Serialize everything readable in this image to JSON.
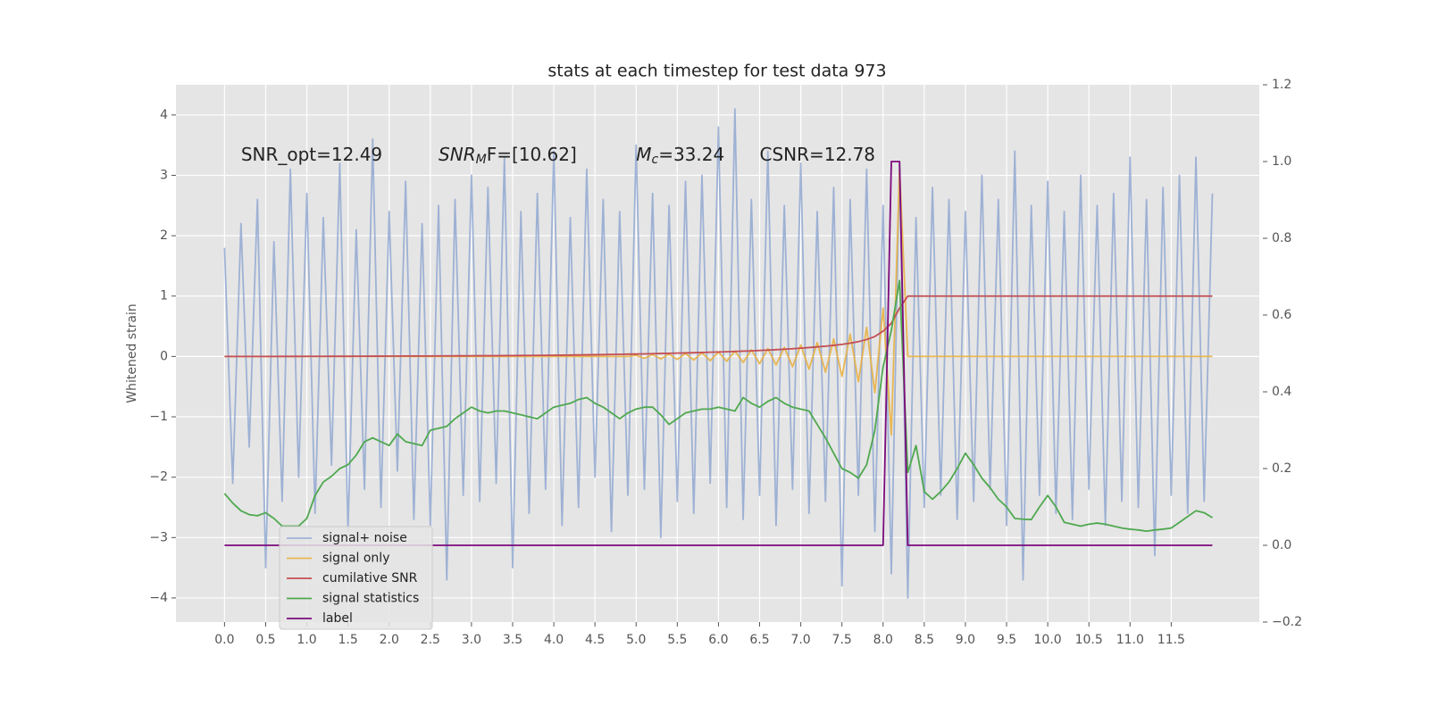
{
  "chart_data": {
    "type": "line",
    "title": "stats at each timestep for test data 973",
    "y_label": "Whitened strain",
    "annotations": [
      {
        "text": "SNR_opt=12.49",
        "x": 0.2
      },
      {
        "base": "SNR",
        "sub": "M",
        "tail": "F=[10.62]",
        "x": 2.6
      },
      {
        "base": "M",
        "sub": "c",
        "tail": "=33.24",
        "x": 5.0
      },
      {
        "text": "CSNR=12.78",
        "x": 6.5
      }
    ],
    "grid": true,
    "legend": "lower left",
    "xlim": [
      -0.59,
      12.57
    ],
    "ylim": [
      -4.4,
      4.5
    ],
    "y2lim": [
      -0.2,
      1.2
    ],
    "xticks": [
      {
        "value": 0,
        "label": "0.0"
      },
      0.5,
      {
        "value": 1,
        "label": "1.0"
      },
      1.5,
      {
        "value": 2,
        "label": "2.0"
      },
      2.5,
      {
        "value": 3,
        "label": "3.0"
      },
      3.5,
      {
        "value": 4,
        "label": "4.0"
      },
      4.5,
      {
        "value": 5,
        "label": "5.0"
      },
      5.5,
      {
        "value": 6,
        "label": "6.0"
      },
      6.5,
      {
        "value": 7,
        "label": "7.0"
      },
      7.5,
      {
        "value": 8,
        "label": "8.0"
      },
      8.5,
      {
        "value": 9,
        "label": "9.0"
      },
      9.5,
      {
        "value": 10,
        "label": "10.0"
      },
      10.5,
      {
        "value": 11,
        "label": "11.0"
      },
      11.5
    ],
    "yticks": [
      {
        "value": -4,
        "label": "−4"
      },
      {
        "value": -3,
        "label": "−3"
      },
      {
        "value": -2,
        "label": "−2"
      },
      {
        "value": -1,
        "label": "−1"
      },
      0,
      1,
      2,
      3,
      4
    ],
    "y2ticks": [
      {
        "value": -0.2,
        "label": "−0.2"
      },
      {
        "value": 0,
        "label": "0.0"
      },
      0.2,
      0.4,
      0.6,
      0.8,
      {
        "value": 1,
        "label": "1.0"
      },
      1.2
    ],
    "x": [
      0,
      0.1,
      0.2,
      0.3,
      0.4,
      0.5,
      0.6,
      0.7,
      0.8,
      0.9,
      1,
      1.1,
      1.2,
      1.3,
      1.4,
      1.5,
      1.6,
      1.7,
      1.8,
      1.9,
      2,
      2.1,
      2.2,
      2.3,
      2.4,
      2.5,
      2.6,
      2.7,
      2.8,
      2.9,
      3,
      3.1,
      3.2,
      3.3,
      3.4,
      3.5,
      3.6,
      3.7,
      3.8,
      3.9,
      4,
      4.1,
      4.2,
      4.3,
      4.4,
      4.5,
      4.6,
      4.7,
      4.8,
      4.9,
      5,
      5.1,
      5.2,
      5.3,
      5.4,
      5.5,
      5.6,
      5.7,
      5.8,
      5.9,
      6,
      6.1,
      6.2,
      6.3,
      6.4,
      6.5,
      6.6,
      6.7,
      6.8,
      6.9,
      7,
      7.1,
      7.2,
      7.3,
      7.4,
      7.5,
      7.6,
      7.7,
      7.8,
      7.9,
      8,
      8.1,
      8.2,
      8.3,
      8.4,
      8.5,
      8.6,
      8.7,
      8.8,
      8.9,
      9,
      9.1,
      9.2,
      9.3,
      9.4,
      9.5,
      9.6,
      9.7,
      9.8,
      9.9,
      10,
      10.1,
      10.2,
      10.3,
      10.4,
      10.5,
      10.6,
      10.7,
      10.8,
      10.9,
      11,
      11.1,
      11.2,
      11.3,
      11.4,
      11.5,
      11.6,
      11.7,
      11.8,
      11.9,
      12
    ],
    "series": [
      {
        "name": "signal+ noise",
        "color": "#92a8d1",
        "opacity": 0.85,
        "values": [
          1.8,
          -2.1,
          2.2,
          -1.5,
          2.6,
          -3.5,
          1.9,
          -2.4,
          3.1,
          -2.0,
          2.7,
          -2.6,
          2.3,
          -1.8,
          3.2,
          -2.9,
          2.1,
          -2.2,
          3.6,
          -2.5,
          2.4,
          -1.9,
          2.9,
          -2.7,
          2.2,
          -2.8,
          2.5,
          -3.7,
          2.6,
          -2.3,
          3.0,
          -2.4,
          2.8,
          -2.1,
          3.3,
          -3.5,
          2.4,
          -2.6,
          2.7,
          -2.2,
          3.4,
          -2.8,
          2.3,
          -2.5,
          3.1,
          -2.0,
          2.6,
          -2.9,
          2.4,
          -2.3,
          3.5,
          -2.2,
          2.7,
          -3.0,
          2.5,
          -2.4,
          2.9,
          -2.6,
          3.0,
          -2.1,
          3.8,
          -2.5,
          4.1,
          -2.7,
          2.6,
          -2.3,
          3.4,
          -2.8,
          2.5,
          -2.2,
          3.2,
          -2.6,
          2.4,
          -2.4,
          2.8,
          -3.8,
          2.6,
          -2.3,
          3.1,
          -2.9,
          2.5,
          -3.6,
          3.2,
          -4.0,
          2.3,
          -2.5,
          2.8,
          -2.3,
          2.6,
          -2.7,
          2.4,
          -2.4,
          3.0,
          -2.2,
          2.6,
          -2.8,
          3.4,
          -3.7,
          2.5,
          -2.3,
          2.9,
          -2.6,
          2.4,
          -2.7,
          3.0,
          -2.2,
          2.5,
          -2.8,
          2.7,
          -2.4,
          3.3,
          -2.5,
          2.6,
          -3.3,
          2.8,
          -2.3,
          3.0,
          -2.6,
          3.3,
          -2.4,
          2.7
        ]
      },
      {
        "name": "signal only",
        "color": "#e8b043",
        "opacity": 0.9,
        "values": [
          0,
          0,
          0,
          0,
          0,
          0,
          0,
          0,
          0,
          0,
          0,
          0,
          0,
          0,
          0,
          0,
          0,
          0,
          0,
          0,
          0,
          0,
          0,
          0,
          0,
          0,
          0,
          0,
          0,
          0,
          0,
          0,
          0,
          0,
          0,
          0,
          0,
          0,
          0,
          0,
          0,
          0,
          0,
          0,
          0,
          0,
          0,
          0,
          0,
          0,
          0.02,
          -0.03,
          0.03,
          -0.04,
          0.04,
          -0.05,
          0.05,
          -0.06,
          0.06,
          -0.07,
          0.07,
          -0.08,
          0.09,
          -0.1,
          0.11,
          -0.12,
          0.13,
          -0.14,
          0.15,
          -0.17,
          0.19,
          -0.21,
          0.23,
          -0.26,
          0.29,
          -0.33,
          0.37,
          -0.42,
          0.48,
          -0.6,
          0.8,
          -1.3,
          3.1,
          0,
          0,
          0,
          0,
          0,
          0,
          0,
          0,
          0,
          0,
          0,
          0,
          0,
          0,
          0,
          0,
          0,
          0,
          0,
          0,
          0,
          0,
          0,
          0,
          0,
          0,
          0,
          0,
          0,
          0,
          0,
          0,
          0,
          0,
          0,
          0,
          0,
          0
        ]
      },
      {
        "name": "cumilative SNR",
        "color": "#c44e52",
        "opacity": 1,
        "values": [
          0,
          0,
          0,
          0,
          0,
          0,
          0,
          0.001,
          0.001,
          0.001,
          0.002,
          0.002,
          0.002,
          0.003,
          0.003,
          0.003,
          0.004,
          0.004,
          0.005,
          0.005,
          0.006,
          0.006,
          0.007,
          0.007,
          0.008,
          0.008,
          0.009,
          0.009,
          0.01,
          0.01,
          0.011,
          0.012,
          0.012,
          0.013,
          0.014,
          0.015,
          0.016,
          0.017,
          0.018,
          0.019,
          0.02,
          0.021,
          0.023,
          0.025,
          0.027,
          0.029,
          0.031,
          0.033,
          0.035,
          0.038,
          0.04,
          0.043,
          0.046,
          0.049,
          0.052,
          0.055,
          0.058,
          0.062,
          0.066,
          0.07,
          0.074,
          0.078,
          0.083,
          0.088,
          0.093,
          0.099,
          0.105,
          0.112,
          0.12,
          0.128,
          0.137,
          0.147,
          0.158,
          0.17,
          0.184,
          0.2,
          0.22,
          0.245,
          0.28,
          0.33,
          0.42,
          0.55,
          0.8,
          1,
          1,
          1,
          1,
          1,
          1,
          1,
          1,
          1,
          1,
          1,
          1,
          1,
          1,
          1,
          1,
          1,
          1,
          1,
          1,
          1,
          1,
          1,
          1,
          1,
          1,
          1,
          1,
          1,
          1,
          1,
          1,
          1,
          1,
          1,
          1,
          1,
          1
        ]
      },
      {
        "name": "signal statistics",
        "color": "#4fa84f",
        "opacity": 1,
        "axis": "y2",
        "values": [
          0.135,
          0.11,
          0.09,
          0.08,
          0.077,
          0.085,
          0.07,
          0.05,
          0.05,
          0.05,
          0.07,
          0.13,
          0.165,
          0.18,
          0.2,
          0.21,
          0.235,
          0.27,
          0.28,
          0.27,
          0.26,
          0.29,
          0.27,
          0.265,
          0.26,
          0.3,
          0.305,
          0.31,
          0.33,
          0.345,
          0.36,
          0.35,
          0.345,
          0.35,
          0.35,
          0.345,
          0.34,
          0.335,
          0.33,
          0.345,
          0.36,
          0.365,
          0.37,
          0.38,
          0.385,
          0.37,
          0.36,
          0.345,
          0.33,
          0.345,
          0.355,
          0.36,
          0.36,
          0.34,
          0.315,
          0.33,
          0.345,
          0.35,
          0.355,
          0.355,
          0.36,
          0.355,
          0.35,
          0.385,
          0.37,
          0.36,
          0.375,
          0.385,
          0.37,
          0.36,
          0.355,
          0.35,
          0.315,
          0.28,
          0.24,
          0.2,
          0.19,
          0.175,
          0.21,
          0.3,
          0.465,
          0.56,
          0.69,
          0.19,
          0.26,
          0.14,
          0.12,
          0.14,
          0.165,
          0.2,
          0.24,
          0.21,
          0.175,
          0.15,
          0.12,
          0.1,
          0.07,
          0.068,
          0.067,
          0.1,
          0.13,
          0.1,
          0.06,
          0.055,
          0.05,
          0.055,
          0.058,
          0.055,
          0.05,
          0.045,
          0.042,
          0.04,
          0.037,
          0.04,
          0.042,
          0.045,
          0.06,
          0.075,
          0.09,
          0.085,
          0.072
        ]
      },
      {
        "name": "label",
        "color": "#7b0a7b",
        "opacity": 1,
        "axis": "y2",
        "values": [
          0,
          0,
          0,
          0,
          0,
          0,
          0,
          0,
          0,
          0,
          0,
          0,
          0,
          0,
          0,
          0,
          0,
          0,
          0,
          0,
          0,
          0,
          0,
          0,
          0,
          0,
          0,
          0,
          0,
          0,
          0,
          0,
          0,
          0,
          0,
          0,
          0,
          0,
          0,
          0,
          0,
          0,
          0,
          0,
          0,
          0,
          0,
          0,
          0,
          0,
          0,
          0,
          0,
          0,
          0,
          0,
          0,
          0,
          0,
          0,
          0,
          0,
          0,
          0,
          0,
          0,
          0,
          0,
          0,
          0,
          0,
          0,
          0,
          0,
          0,
          0,
          0,
          0,
          0,
          0,
          0,
          1,
          1,
          0,
          0,
          0,
          0,
          0,
          0,
          0,
          0,
          0,
          0,
          0,
          0,
          0,
          0,
          0,
          0,
          0,
          0,
          0,
          0,
          0,
          0,
          0,
          0,
          0,
          0,
          0,
          0,
          0,
          0,
          0,
          0,
          0,
          0,
          0,
          0,
          0,
          0
        ]
      }
    ]
  }
}
